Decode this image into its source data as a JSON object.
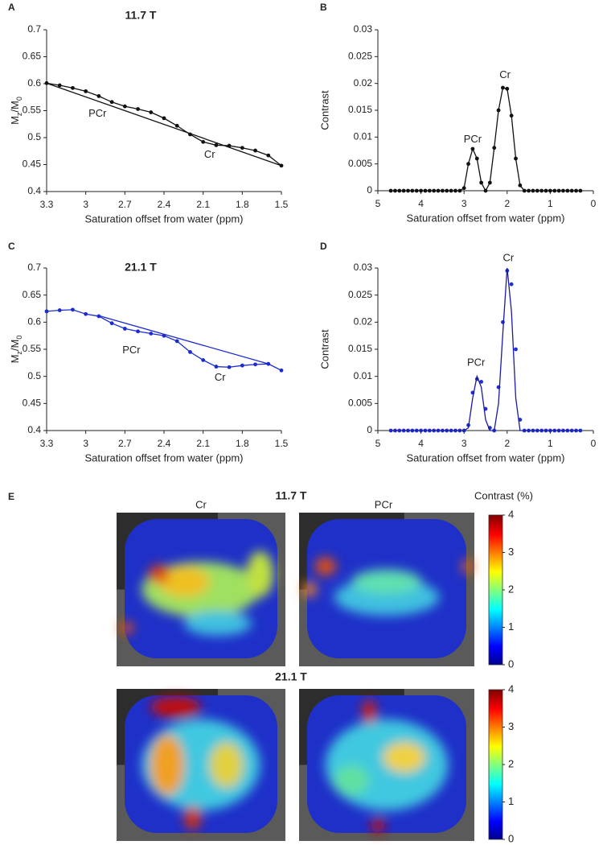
{
  "chart_data": [
    {
      "type": "line",
      "label": "A",
      "title": "11.7 T",
      "xlabel": "Saturation offset from water (ppm)",
      "ylabel": [
        "M",
        "z",
        "/M",
        "0"
      ],
      "xlim": [
        3.3,
        1.5
      ],
      "xticks": [
        3.3,
        3,
        2.7,
        2.4,
        2.1,
        1.8,
        1.5
      ],
      "ylim": [
        0.4,
        0.7
      ],
      "yticks": [
        0.4,
        0.45,
        0.5,
        0.55,
        0.6,
        0.65,
        0.7
      ],
      "x": [
        3.3,
        3.2,
        3.1,
        3.0,
        2.9,
        2.8,
        2.7,
        2.6,
        2.5,
        2.4,
        2.3,
        2.2,
        2.1,
        2.0,
        1.9,
        1.8,
        1.7,
        1.6,
        1.5
      ],
      "series": [
        {
          "color": "#111111",
          "mode": "lines+markers",
          "values": [
            0.601,
            0.597,
            0.592,
            0.586,
            0.577,
            0.566,
            0.558,
            0.553,
            0.547,
            0.536,
            0.522,
            0.506,
            0.492,
            0.486,
            0.485,
            0.481,
            0.476,
            0.467,
            0.448
          ]
        },
        {
          "color": "#111111",
          "mode": "lines",
          "x": [
            3.3,
            1.5
          ],
          "values": [
            0.601,
            0.448
          ]
        }
      ],
      "annotations": [
        {
          "text": "PCr",
          "color": "#2a9a2a",
          "x": 2.91,
          "y": 0.544
        },
        {
          "text": "Cr",
          "color": "#a01818",
          "x": 2.05,
          "y": 0.468
        }
      ]
    },
    {
      "type": "line",
      "label": "B",
      "xlabel": "Saturation offset from water (ppm)",
      "ylabel": "Contrast",
      "xlim": [
        5,
        0
      ],
      "xticks": [
        5,
        4,
        3,
        2,
        1,
        0
      ],
      "ylim": [
        0,
        0.03
      ],
      "yticks": [
        0,
        0.005,
        0.01,
        0.015,
        0.02,
        0.025,
        0.03
      ],
      "x": [
        4.7,
        4.6,
        4.5,
        4.4,
        4.3,
        4.2,
        4.1,
        4.0,
        3.9,
        3.8,
        3.7,
        3.6,
        3.5,
        3.4,
        3.3,
        3.2,
        3.1,
        3.0,
        2.9,
        2.8,
        2.7,
        2.6,
        2.5,
        2.4,
        2.3,
        2.2,
        2.1,
        2.0,
        1.9,
        1.8,
        1.7,
        1.6,
        1.5,
        1.4,
        1.3,
        1.2,
        1.1,
        1.0,
        0.9,
        0.8,
        0.7,
        0.6,
        0.5,
        0.4,
        0.3
      ],
      "series": [
        {
          "color": "#111111",
          "mode": "lines+markers",
          "values": [
            0,
            0,
            0,
            0,
            0,
            0,
            0,
            0,
            0,
            0,
            0,
            0,
            0,
            0,
            0,
            0,
            0,
            0.0005,
            0.005,
            0.0078,
            0.006,
            0.0015,
            0,
            0.0015,
            0.008,
            0.015,
            0.0192,
            0.019,
            0.014,
            0.006,
            0.001,
            0,
            0,
            0,
            0,
            0,
            0,
            0,
            0,
            0,
            0,
            0,
            0,
            0,
            0
          ]
        }
      ],
      "annotations": [
        {
          "text": "PCr",
          "color": "#2a9a2a",
          "x": 2.8,
          "y": 0.0095
        },
        {
          "text": "Cr",
          "color": "#a01818",
          "x": 2.05,
          "y": 0.0215
        }
      ]
    },
    {
      "type": "line",
      "label": "C",
      "title": "21.1 T",
      "xlabel": "Saturation offset from water (ppm)",
      "ylabel": [
        "M",
        "z",
        "/M",
        "0"
      ],
      "xlim": [
        3.3,
        1.5
      ],
      "xticks": [
        3.3,
        3,
        2.7,
        2.4,
        2.1,
        1.8,
        1.5
      ],
      "ylim": [
        0.4,
        0.7
      ],
      "yticks": [
        0.4,
        0.45,
        0.5,
        0.55,
        0.6,
        0.65,
        0.7
      ],
      "x": [
        3.3,
        3.2,
        3.1,
        3.0,
        2.9,
        2.8,
        2.7,
        2.6,
        2.5,
        2.4,
        2.3,
        2.2,
        2.1,
        2.0,
        1.9,
        1.8,
        1.7,
        1.6,
        1.5
      ],
      "series": [
        {
          "color": "#1c2bd0",
          "mode": "lines+markers",
          "values": [
            0.62,
            0.622,
            0.623,
            0.615,
            0.611,
            0.598,
            0.588,
            0.583,
            0.579,
            0.575,
            0.565,
            0.545,
            0.53,
            0.518,
            0.517,
            0.52,
            0.522,
            0.523,
            0.511
          ]
        },
        {
          "color": "#1c2bd0",
          "mode": "lines",
          "x": [
            2.9,
            1.6
          ],
          "values": [
            0.612,
            0.523
          ]
        }
      ],
      "annotations": [
        {
          "text": "PCr",
          "color": "#2a9a2a",
          "x": 2.65,
          "y": 0.548
        },
        {
          "text": "Cr",
          "color": "#a01818",
          "x": 1.97,
          "y": 0.497
        }
      ]
    },
    {
      "type": "line",
      "label": "D",
      "xlabel": "Saturation offset from water (ppm)",
      "ylabel": "Contrast",
      "xlim": [
        5,
        0
      ],
      "xticks": [
        5,
        4,
        3,
        2,
        1,
        0
      ],
      "ylim": [
        0,
        0.03
      ],
      "yticks": [
        0,
        0.005,
        0.01,
        0.015,
        0.02,
        0.025,
        0.03
      ],
      "x": [
        4.7,
        4.6,
        4.5,
        4.4,
        4.3,
        4.2,
        4.1,
        4.0,
        3.9,
        3.8,
        3.7,
        3.6,
        3.5,
        3.4,
        3.3,
        3.2,
        3.1,
        3.0,
        2.9,
        2.8,
        2.7,
        2.6,
        2.5,
        2.4,
        2.3,
        2.2,
        2.1,
        2.0,
        1.9,
        1.8,
        1.7,
        1.6,
        1.5,
        1.4,
        1.3,
        1.2,
        1.1,
        1.0,
        0.9,
        0.8,
        0.7,
        0.6,
        0.5,
        0.4,
        0.3
      ],
      "series": [
        {
          "color": "#1f2fd0",
          "mode": "markers",
          "values": [
            0,
            0,
            0,
            0,
            0,
            0,
            0,
            0,
            0,
            0,
            0,
            0,
            0,
            0,
            0,
            0,
            0,
            0,
            0.001,
            0.007,
            0.0095,
            0.009,
            0.004,
            0.0005,
            0,
            0.008,
            0.02,
            0.0295,
            0.027,
            0.015,
            0.002,
            0,
            0,
            0,
            0,
            0,
            0,
            0,
            0,
            0,
            0,
            0,
            0,
            0,
            0
          ]
        },
        {
          "color": "#1a1aa0",
          "mode": "lines",
          "values": [
            0,
            0,
            0,
            0,
            0,
            0,
            0,
            0,
            0,
            0,
            0,
            0,
            0,
            0,
            0,
            0,
            0,
            0,
            0.0005,
            0.006,
            0.01,
            0.008,
            0.002,
            0,
            0,
            0.005,
            0.018,
            0.03,
            0.022,
            0.006,
            0,
            0,
            0,
            0,
            0,
            0,
            0,
            0,
            0,
            0,
            0,
            0,
            0,
            0,
            0
          ]
        }
      ],
      "annotations": [
        {
          "text": "PCr",
          "color": "#2a9a2a",
          "x": 2.72,
          "y": 0.0125
        },
        {
          "text": "Cr",
          "color": "#a01818",
          "x": 1.97,
          "y": 0.0318
        }
      ]
    },
    {
      "type": "colorbar",
      "colormap": "jet",
      "zlim": [
        0,
        4
      ],
      "zticks": [
        0,
        1,
        2,
        3,
        4
      ]
    },
    {
      "type": "colorbar",
      "colormap": "jet",
      "zlim": [
        0,
        4
      ],
      "zticks": [
        0,
        1,
        2,
        3,
        4
      ]
    }
  ],
  "panel_e": {
    "label": "E",
    "rows": [
      "11.7 T",
      "21.1 T"
    ],
    "columns": [
      {
        "text": "Cr",
        "color": "#a01818"
      },
      {
        "text": "PCr",
        "color": "#2a9a2a"
      }
    ],
    "colorbar_title": "Contrast (%)"
  }
}
